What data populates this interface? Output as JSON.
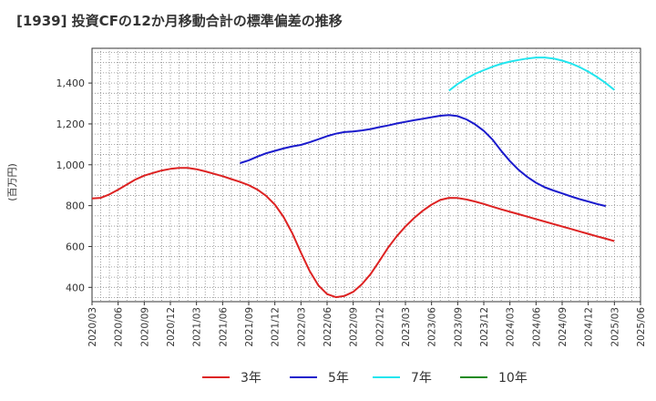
{
  "chart_data": {
    "type": "line",
    "title": "[1939]  投資CFの12か月移動合計の標準偏差の推移",
    "ylabel": "(百万円)",
    "ylim": [
      330,
      1570
    ],
    "yticks": [
      400,
      600,
      800,
      1000,
      1200,
      1400
    ],
    "ytick_labels": [
      "400",
      "600",
      "800",
      "1,000",
      "1,200",
      "1,400"
    ],
    "xticks": [
      "2020/03",
      "2020/06",
      "2020/09",
      "2020/12",
      "2021/03",
      "2021/06",
      "2021/09",
      "2021/12",
      "2022/03",
      "2022/06",
      "2022/09",
      "2022/12",
      "2023/03",
      "2023/06",
      "2023/09",
      "2023/12",
      "2024/03",
      "2024/06",
      "2024/09",
      "2024/12",
      "2025/03",
      "2025/06"
    ],
    "grid": true,
    "legend_position": "bottom",
    "series": [
      {
        "name": "3年",
        "color": "#dd2222",
        "start": "2020/03",
        "values": [
          835,
          838,
          855,
          878,
          903,
          928,
          947,
          960,
          972,
          980,
          985,
          985,
          978,
          968,
          956,
          944,
          930,
          916,
          900,
          878,
          848,
          805,
          745,
          665,
          570,
          480,
          410,
          367,
          352,
          358,
          378,
          415,
          465,
          528,
          594,
          650,
          698,
          740,
          775,
          805,
          828,
          838,
          837,
          830,
          820,
          808,
          795,
          782,
          770,
          758,
          746,
          734,
          722,
          710,
          698,
          686,
          674,
          662,
          650,
          638,
          626
        ]
      },
      {
        "name": "5年",
        "color": "#1a1acc",
        "start": "2021/08",
        "values": [
          1008,
          1022,
          1040,
          1056,
          1068,
          1080,
          1090,
          1097,
          1110,
          1125,
          1140,
          1152,
          1160,
          1163,
          1168,
          1175,
          1184,
          1192,
          1202,
          1210,
          1218,
          1225,
          1233,
          1240,
          1243,
          1238,
          1222,
          1198,
          1166,
          1123,
          1068,
          1018,
          975,
          940,
          912,
          890,
          874,
          860,
          845,
          832,
          820,
          808,
          798
        ]
      },
      {
        "name": "7年",
        "color": "#22e5ee",
        "start": "2023/08",
        "values": [
          1363,
          1395,
          1422,
          1445,
          1463,
          1480,
          1494,
          1505,
          1513,
          1520,
          1525,
          1525,
          1520,
          1510,
          1496,
          1478,
          1456,
          1430,
          1400,
          1366
        ]
      },
      {
        "name": "10年",
        "color": "#1a8a1a",
        "start": "",
        "values": []
      }
    ]
  }
}
